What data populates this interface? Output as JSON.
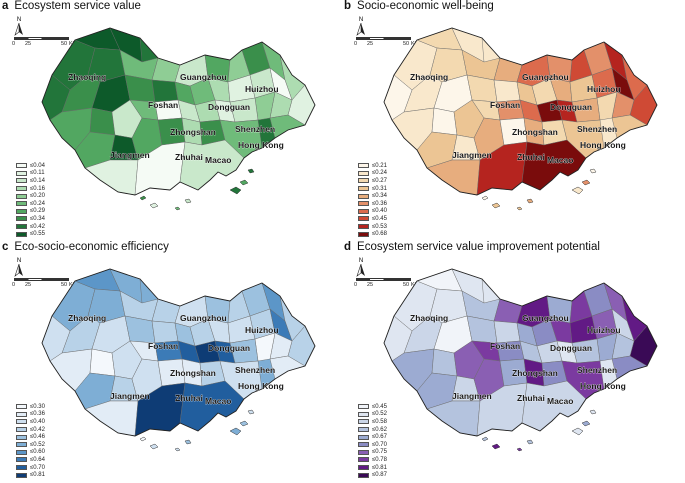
{
  "panels": [
    {
      "letter": "a",
      "title": "Ecosystem service value",
      "north_label": "N",
      "scale": {
        "ticks": [
          "0",
          "25",
          "50"
        ],
        "unit": "Kilometers"
      },
      "legend": [
        {
          "label": "≤0.04",
          "color": "#f5fbf5"
        },
        {
          "label": "≤0.11",
          "color": "#e0f2e1"
        },
        {
          "label": "≤0.14",
          "color": "#c9e8cb"
        },
        {
          "label": "≤0.16",
          "color": "#addcb1"
        },
        {
          "label": "≤0.20",
          "color": "#8fcd95"
        },
        {
          "label": "≤0.24",
          "color": "#6fbb7a"
        },
        {
          "label": "≤0.29",
          "color": "#52a761"
        },
        {
          "label": "≤0.34",
          "color": "#3a8f4b"
        },
        {
          "label": "≤0.42",
          "color": "#22753a"
        },
        {
          "label": "≤0.55",
          "color": "#0d5a2a"
        }
      ],
      "region_classes": [
        8,
        9,
        9,
        8,
        5,
        4,
        2,
        6,
        4,
        7,
        5,
        3,
        1,
        7,
        8,
        9,
        7,
        8,
        6,
        5,
        3,
        1,
        2,
        0,
        3,
        4,
        5,
        6,
        7,
        2,
        5,
        0,
        2,
        3,
        1,
        2,
        6,
        9,
        6,
        7,
        3,
        7,
        5,
        1,
        0,
        2
      ],
      "cities": [
        "Zhaoqing",
        "Guangzhou",
        "Huizhou",
        "Foshan",
        "Dongguan",
        "Zhongshan",
        "Shenzhen",
        "Hong Kong",
        "Jiangmen",
        "Zhuhai",
        "Macao"
      ]
    },
    {
      "letter": "b",
      "title": "Socio-economic well-being",
      "north_label": "N",
      "scale": {
        "ticks": [
          "0",
          "25",
          "50"
        ],
        "unit": "Kilometers"
      },
      "legend": [
        {
          "label": "≤0.21",
          "color": "#fdf6ea"
        },
        {
          "label": "≤0.24",
          "color": "#f9e8cc"
        },
        {
          "label": "≤0.27",
          "color": "#f3d9b0"
        },
        {
          "label": "≤0.31",
          "color": "#ecc594"
        },
        {
          "label": "≤0.34",
          "color": "#e7ad7e"
        },
        {
          "label": "≤0.36",
          "color": "#e3906a"
        },
        {
          "label": "≤0.40",
          "color": "#dc6b4d"
        },
        {
          "label": "≤0.45",
          "color": "#cf4a35"
        },
        {
          "label": "≤0.53",
          "color": "#b5241f"
        },
        {
          "label": "≤0.68",
          "color": "#7a0c0c"
        }
      ],
      "region_classes": [
        1,
        2,
        1,
        2,
        3,
        4,
        6,
        5,
        7,
        5,
        8,
        6,
        7,
        1,
        0,
        0,
        2,
        1,
        3,
        2,
        4,
        3,
        6,
        9,
        5,
        2,
        3,
        1,
        0,
        3,
        2,
        5,
        6,
        9,
        8,
        4,
        3,
        1,
        4,
        0,
        4,
        2,
        3,
        4,
        8,
        9
      ],
      "cities": [
        "Zhaoqing",
        "Guangzhou",
        "Huizhou",
        "Foshan",
        "Dongguan",
        "Zhongshan",
        "Shenzhen",
        "Hong Kong",
        "Jiangmen",
        "Zhuhai",
        "Macao"
      ]
    },
    {
      "letter": "c",
      "title": "Eco-socio-economic efficiency",
      "north_label": "N",
      "scale": {
        "ticks": [
          "0",
          "25",
          "50"
        ],
        "unit": "Kilometers"
      },
      "legend": [
        {
          "label": "≤0.30",
          "color": "#f4f8fc"
        },
        {
          "label": "≤0.36",
          "color": "#e2ecf6"
        },
        {
          "label": "≤0.40",
          "color": "#cfe0f0"
        },
        {
          "label": "≤0.42",
          "color": "#b8d2e8"
        },
        {
          "label": "≤0.46",
          "color": "#9cc1df"
        },
        {
          "label": "≤0.52",
          "color": "#7eaed5"
        },
        {
          "label": "≤0.60",
          "color": "#5c96c8"
        },
        {
          "label": "≤0.64",
          "color": "#3c7bb7"
        },
        {
          "label": "≤0.70",
          "color": "#215e9e"
        },
        {
          "label": "≤0.81",
          "color": "#0e3c75"
        }
      ],
      "region_classes": [
        5,
        6,
        5,
        5,
        3,
        3,
        2,
        4,
        3,
        4,
        6,
        3,
        3,
        3,
        2,
        2,
        4,
        3,
        4,
        3,
        2,
        2,
        3,
        7,
        1,
        0,
        1,
        1,
        0,
        2,
        1,
        7,
        8,
        9,
        8,
        4,
        5,
        3,
        2,
        1,
        1,
        3,
        2,
        1,
        9,
        8
      ],
      "cities": [
        "Zhaoqing",
        "Guangzhou",
        "Huizhou",
        "Foshan",
        "Dongguan",
        "Zhongshan",
        "Shenzhen",
        "Hong Kong",
        "Jiangmen",
        "Zhuhai",
        "Macao"
      ]
    },
    {
      "letter": "d",
      "title": "Ecosystem service value improvement potential",
      "north_label": "N",
      "scale": {
        "ticks": [
          "0",
          "25",
          "50"
        ],
        "unit": "Kilometers"
      },
      "legend": [
        {
          "label": "≤0.45",
          "color": "#f1f4f9"
        },
        {
          "label": "≤0.52",
          "color": "#dfe6f1"
        },
        {
          "label": "≤0.58",
          "color": "#cbd6e8"
        },
        {
          "label": "≤0.62",
          "color": "#b4c3de"
        },
        {
          "label": "≤0.67",
          "color": "#9cabd2"
        },
        {
          "label": "≤0.70",
          "color": "#8a8cc4"
        },
        {
          "label": "≤0.75",
          "color": "#8a5fb3"
        },
        {
          "label": "≤0.78",
          "color": "#7b3aa0"
        },
        {
          "label": "≤0.81",
          "color": "#621a85"
        },
        {
          "label": "≤0.87",
          "color": "#3a0a56"
        }
      ],
      "region_classes": [
        1,
        0,
        1,
        1,
        3,
        6,
        8,
        4,
        7,
        5,
        6,
        8,
        9,
        2,
        1,
        0,
        3,
        2,
        4,
        5,
        7,
        8,
        6,
        2,
        3,
        4,
        5,
        4,
        3,
        6,
        7,
        5,
        3,
        2,
        1,
        3,
        4,
        2,
        6,
        4,
        8,
        5,
        7,
        3,
        2,
        2
      ],
      "cities": [
        "Zhaoqing",
        "Guangzhou",
        "Huizhou",
        "Foshan",
        "Dongguan",
        "Zhongshan",
        "Shenzhen",
        "Hong Kong",
        "Jiangmen",
        "Zhuhai",
        "Macao"
      ]
    }
  ]
}
